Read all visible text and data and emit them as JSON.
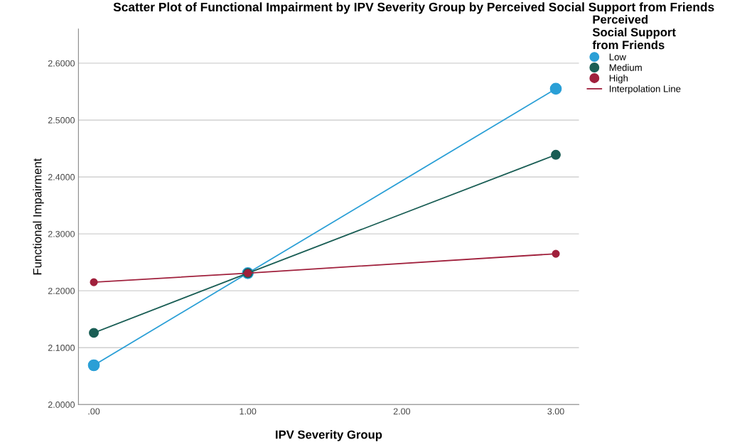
{
  "chart_data": {
    "type": "line",
    "title": "Scatter Plot of Functional Impairment by IPV Severity Group by Perceived Social Support from Friends",
    "xlabel": "IPV Severity Group",
    "ylabel": "Functional Impairment",
    "legend_title": "Perceived\nSocial Support\nfrom Friends",
    "x": [
      0,
      1,
      3
    ],
    "series": [
      {
        "name": "Low",
        "color": "#2a9fd6",
        "values": [
          2.069,
          2.231,
          2.555
        ]
      },
      {
        "name": "Medium",
        "color": "#1a5e55",
        "values": [
          2.126,
          2.231,
          2.439
        ]
      },
      {
        "name": "High",
        "color": "#a0203c",
        "values": [
          2.215,
          2.231,
          2.265
        ]
      }
    ],
    "annotations": [
      "Interpolation Line"
    ],
    "xlim": [
      -0.1,
      3.15
    ],
    "xticks": [
      {
        "value": 0,
        "label": ".00"
      },
      {
        "value": 1,
        "label": "1.00"
      },
      {
        "value": 2,
        "label": "2.00"
      },
      {
        "value": 3,
        "label": "3.00"
      }
    ],
    "ylim": [
      2.0,
      2.66
    ],
    "yticks": [
      {
        "value": 2.0,
        "label": "2.0000"
      },
      {
        "value": 2.1,
        "label": "2.1000"
      },
      {
        "value": 2.2,
        "label": "2.2000"
      },
      {
        "value": 2.3,
        "label": "2.3000"
      },
      {
        "value": 2.4,
        "label": "2.4000"
      },
      {
        "value": 2.5,
        "label": "2.5000"
      },
      {
        "value": 2.6,
        "label": "2.6000"
      }
    ],
    "grid": "y",
    "legend": "top right",
    "marker": "circle",
    "line_style": "solid"
  }
}
